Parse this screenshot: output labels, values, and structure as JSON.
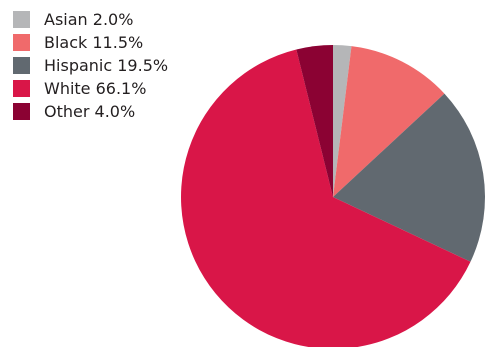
{
  "chart_data": {
    "type": "pie",
    "title": "",
    "slices": [
      {
        "label": "Asian 2.0%",
        "category": "Asian",
        "value": 2.0,
        "color": "#b5b6b8"
      },
      {
        "label": "Black 11.5%",
        "category": "Black",
        "value": 11.5,
        "color": "#f06a6b"
      },
      {
        "label": "Hispanic 19.5%",
        "category": "Hispanic",
        "value": 19.5,
        "color": "#616970"
      },
      {
        "label": "White 66.1%",
        "category": "White",
        "value": 66.1,
        "color": "#d91648"
      },
      {
        "label": "Other 4.0%",
        "category": "Other",
        "value": 4.0,
        "color": "#8b0233"
      }
    ],
    "legend_placement": "top-left",
    "start_angle": "top (12 o'clock)",
    "direction": "clockwise"
  }
}
